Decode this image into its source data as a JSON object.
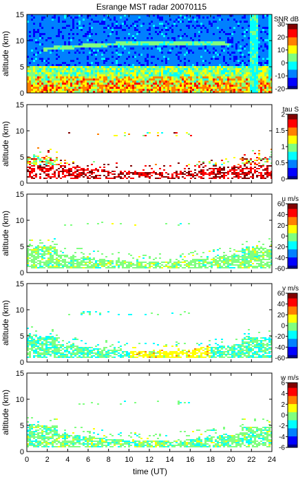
{
  "chart_data": {
    "type": "heatmap",
    "title": "Esrange MST radar 20070115",
    "xlabel": "time (UT)",
    "x_ticks": [
      0,
      2,
      4,
      6,
      8,
      10,
      12,
      14,
      16,
      18,
      20,
      22,
      24
    ],
    "xlim": [
      0,
      24
    ],
    "panels": [
      {
        "id": "snr",
        "ylabel": "altitude (km)",
        "ylim": [
          0,
          15
        ],
        "y_ticks": [
          0,
          5,
          10,
          15
        ],
        "colorbar_label": "SNR dB",
        "colorbar_range": [
          -20,
          30
        ],
        "colorbar_ticks": [
          -20,
          -10,
          0,
          10,
          20,
          30
        ],
        "colorbar_tick_labels": [
          "-20",
          "-10",
          "0",
          "10",
          "20",
          "30"
        ],
        "background_color": "#2a56c6"
      },
      {
        "id": "tau",
        "ylabel": "altitude (km)",
        "ylim": [
          0,
          15
        ],
        "y_ticks": [
          0,
          5,
          10,
          15
        ],
        "colorbar_label": "tau S",
        "colorbar_range": [
          0,
          2
        ],
        "colorbar_ticks": [
          0,
          0.5,
          1,
          1.5,
          2
        ],
        "colorbar_tick_labels": [
          "0",
          "0.5",
          "1",
          "1.5",
          "2"
        ],
        "background_color": "#ffffff"
      },
      {
        "id": "u",
        "ylabel": "altitude (km)",
        "ylim": [
          0,
          15
        ],
        "y_ticks": [
          0,
          5,
          10,
          15
        ],
        "colorbar_label": "u m/s",
        "colorbar_range": [
          -60,
          60
        ],
        "colorbar_ticks": [
          -60,
          -40,
          -20,
          0,
          20,
          40,
          60
        ],
        "colorbar_tick_labels": [
          "-60",
          "-40",
          "-20",
          "0",
          "20",
          "40",
          "60"
        ],
        "background_color": "#ffffff"
      },
      {
        "id": "v",
        "ylabel": "altitude (km)",
        "ylim": [
          0,
          15
        ],
        "y_ticks": [
          0,
          5,
          10,
          15
        ],
        "colorbar_label": "v m/s",
        "colorbar_range": [
          -60,
          60
        ],
        "colorbar_ticks": [
          -60,
          -40,
          -20,
          0,
          20,
          40,
          60
        ],
        "colorbar_tick_labels": [
          "-60",
          "-40",
          "-20",
          "0",
          "20",
          "40",
          "60"
        ],
        "background_color": "#ffffff"
      },
      {
        "id": "w",
        "ylabel": "altitude (km)",
        "ylim": [
          0,
          15
        ],
        "y_ticks": [
          0,
          5,
          10,
          15
        ],
        "colorbar_label": "w m/s",
        "colorbar_range": [
          -6,
          6
        ],
        "colorbar_ticks": [
          -6,
          -4,
          -2,
          0,
          2,
          4,
          6
        ],
        "colorbar_tick_labels": [
          "-6",
          "-4",
          "-2",
          "0",
          "2",
          "4",
          "6"
        ],
        "background_color": "#ffffff"
      }
    ],
    "colormap": [
      "#00008f",
      "#0000ff",
      "#0080ff",
      "#00ffff",
      "#80ff80",
      "#ffff00",
      "#ff8000",
      "#ff0000",
      "#800000"
    ]
  }
}
